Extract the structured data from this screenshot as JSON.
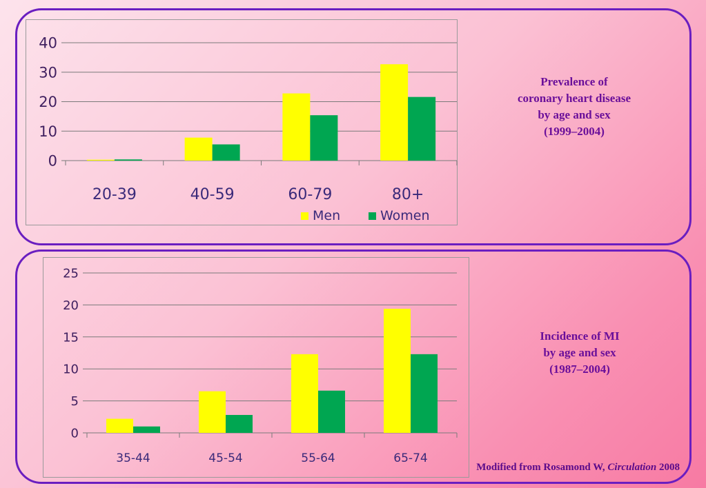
{
  "colors": {
    "men": "#ffff00",
    "women": "#00a651",
    "border": "#6a1ec0",
    "caption": "#6a0f9a"
  },
  "captions": {
    "top": [
      "Prevalence of",
      "coronary heart disease",
      "by age and sex",
      "(1999–2004)"
    ],
    "bottom": [
      "Incidence of MI",
      "by age and sex",
      "(1987–2004)"
    ]
  },
  "citation": {
    "prefix": "Modified from Rosamond W, ",
    "journal": "Circulation",
    "year": " 2008"
  },
  "chart_data": [
    {
      "type": "bar",
      "categories": [
        "20-39",
        "40-59",
        "60-79",
        "80+"
      ],
      "series": [
        {
          "name": "Men",
          "values": [
            0.3,
            7.8,
            22.8,
            32.7
          ]
        },
        {
          "name": "Women",
          "values": [
            0.4,
            5.5,
            15.4,
            21.6
          ]
        }
      ],
      "yticks": [
        "0",
        "10",
        "20",
        "30",
        "40"
      ],
      "ylim": [
        0,
        40
      ],
      "grid": true,
      "legend": "bottom-right"
    },
    {
      "type": "bar",
      "categories": [
        "35-44",
        "45-54",
        "55-64",
        "65-74"
      ],
      "series": [
        {
          "name": "Men",
          "values": [
            2.2,
            6.5,
            12.3,
            19.4
          ]
        },
        {
          "name": "Women",
          "values": [
            1.0,
            2.8,
            6.6,
            12.3
          ]
        }
      ],
      "yticks": [
        "0",
        "5",
        "10",
        "15",
        "20",
        "25"
      ],
      "ylim": [
        0,
        25
      ],
      "grid": true,
      "legend": "none"
    }
  ]
}
